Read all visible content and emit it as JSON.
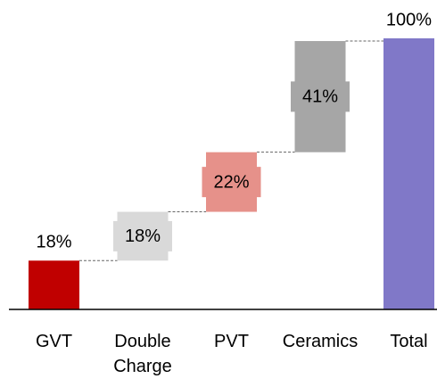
{
  "chart_data": {
    "type": "waterfall",
    "categories": [
      "GVT",
      "Double Charge",
      "PVT",
      "Ceramics",
      "Total"
    ],
    "values": [
      18,
      18,
      22,
      41,
      100
    ],
    "value_labels": [
      "18%",
      "18%",
      "22%",
      "41%",
      "100%"
    ],
    "colors": [
      "#c00000",
      "#d9d9d9",
      "#e6918a",
      "#a6a6a6",
      "#8078c8"
    ],
    "ylim": [
      0,
      100
    ]
  }
}
